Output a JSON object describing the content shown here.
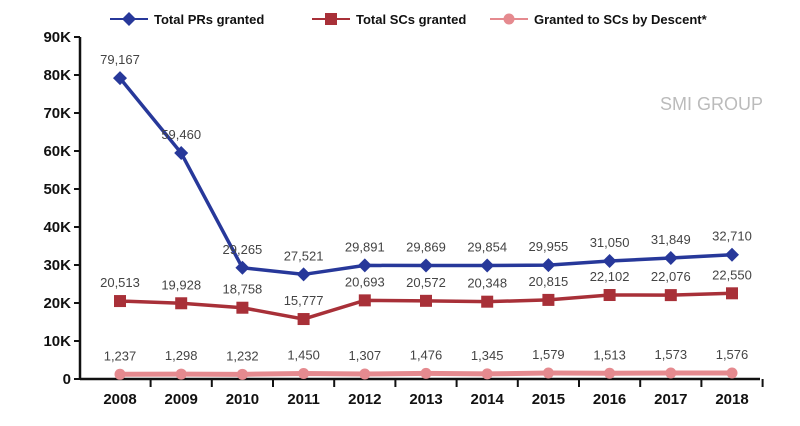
{
  "chart_data": {
    "type": "line",
    "title": "",
    "xlabel": "",
    "ylabel": "",
    "categories": [
      "2008",
      "2009",
      "2010",
      "2011",
      "2012",
      "2013",
      "2014",
      "2015",
      "2016",
      "2017",
      "2018"
    ],
    "ylim": [
      0,
      90000
    ],
    "yticks": [
      0,
      10000,
      20000,
      30000,
      40000,
      50000,
      60000,
      70000,
      80000,
      90000
    ],
    "ytick_labels": [
      "0",
      "10K",
      "20K",
      "30K",
      "40K",
      "50K",
      "60K",
      "70K",
      "80K",
      "90K"
    ],
    "legend_position": "top",
    "grid": false,
    "series": [
      {
        "name": "Total PRs granted",
        "color": "#27389a",
        "marker": "diamond",
        "values": [
          79167,
          59460,
          29265,
          27521,
          29891,
          29869,
          29854,
          29955,
          31050,
          31849,
          32710
        ],
        "labels": [
          "79,167",
          "59,460",
          "29,265",
          "27,521",
          "29,891",
          "29,869",
          "29,854",
          "29,955",
          "31,050",
          "31,849",
          "32,710"
        ]
      },
      {
        "name": "Total SCs granted",
        "color": "#a83038",
        "marker": "square",
        "values": [
          20513,
          19928,
          18758,
          15777,
          20693,
          20572,
          20348,
          20815,
          22102,
          22076,
          22550
        ],
        "labels": [
          "20,513",
          "19,928",
          "18,758",
          "15,777",
          "20,693",
          "20,572",
          "20,348",
          "20,815",
          "22,102",
          "22,076",
          "22,550"
        ]
      },
      {
        "name": "Granted to SCs by Descent*",
        "color": "#e58a8f",
        "marker": "circle",
        "values": [
          1237,
          1298,
          1232,
          1450,
          1307,
          1476,
          1345,
          1579,
          1513,
          1573,
          1576
        ],
        "labels": [
          "1,237",
          "1,298",
          "1,232",
          "1,450",
          "1,307",
          "1,476",
          "1,345",
          "1,579",
          "1,513",
          "1,573",
          "1,576"
        ]
      }
    ]
  },
  "watermark": "SMI GROUP"
}
